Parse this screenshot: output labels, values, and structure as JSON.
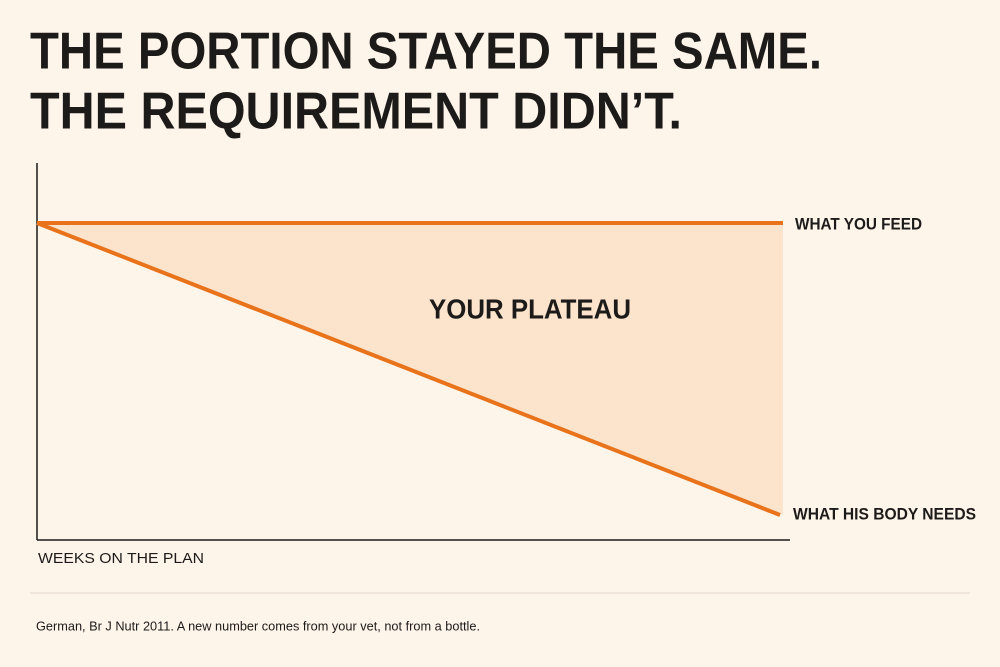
{
  "title": {
    "line1": "THE PORTION STAYED THE SAME.",
    "line2": "THE REQUIREMENT DIDN’T."
  },
  "diagram": {
    "flat_line_label": "WHAT YOU FEED",
    "falling_line_label": "WHAT HIS BODY NEEDS",
    "gap_label": "YOUR PLATEAU",
    "x_axis_label": "WEEKS ON THE PLAN"
  },
  "footnote": "German, Br J Nutr 2011. A new number comes from your vet, not from a bottle."
}
